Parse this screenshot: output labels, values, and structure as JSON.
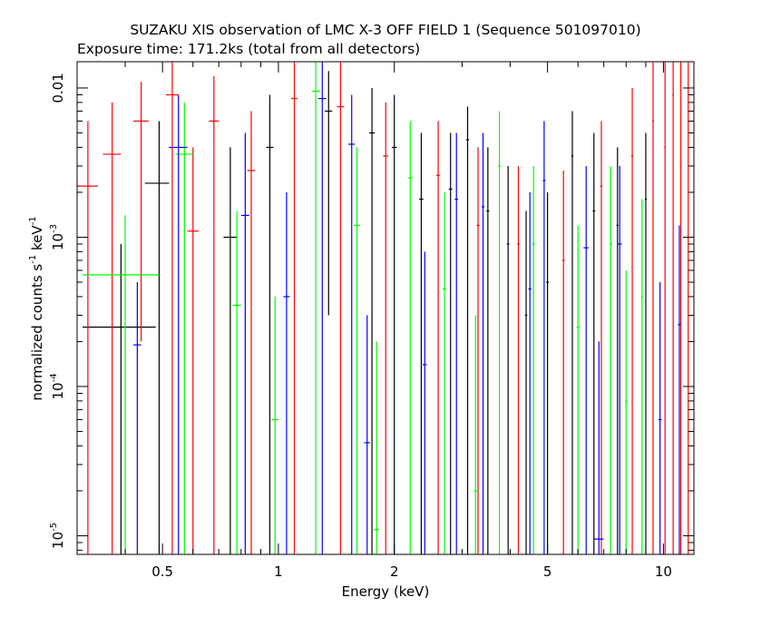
{
  "chart_data": {
    "type": "scatter",
    "title": "SUZAKU XIS observation of LMC X-3 OFF FIELD 1 (Sequence 501097010)",
    "subtitle": "Exposure time: 171.2ks (total from all detectors)",
    "xlabel": "Energy (keV)",
    "ylabel": {
      "text": "normalized counts s",
      "exp1": "-1",
      "mid": " keV",
      "exp2": "-1"
    },
    "x_scale": "log",
    "y_scale": "log",
    "xlim": [
      0.3,
      12.0
    ],
    "ylim": [
      7.5e-06,
      0.015
    ],
    "x_ticks": [
      {
        "value": 0.5,
        "label": "0.5"
      },
      {
        "value": 1,
        "label": "1"
      },
      {
        "value": 2,
        "label": "2"
      },
      {
        "value": 5,
        "label": "5"
      },
      {
        "value": 10,
        "label": "10"
      }
    ],
    "y_ticks": [
      {
        "value": 1e-05,
        "base": "10",
        "exp": "-5"
      },
      {
        "value": 0.0001,
        "base": "10",
        "exp": "-4"
      },
      {
        "value": 0.001,
        "base": "10",
        "exp": "-3"
      },
      {
        "value": 0.01,
        "base": "",
        "exp": "",
        "label": "0.01"
      }
    ],
    "series": [
      {
        "color": "#000000",
        "points": [
          {
            "x": 0.39,
            "xlo": 0.31,
            "xhi": 0.48,
            "y": 0.00025,
            "ylo": 7.5e-06,
            "yhi": 0.0009
          },
          {
            "x": 0.49,
            "xlo": 0.45,
            "xhi": 0.52,
            "y": 0.0023,
            "ylo": 7.5e-06,
            "yhi": 0.006
          },
          {
            "x": 0.75,
            "xlo": 0.72,
            "xhi": 0.78,
            "y": 0.001,
            "ylo": 7.5e-06,
            "yhi": 0.004
          },
          {
            "x": 0.95,
            "xlo": 0.93,
            "xhi": 0.97,
            "y": 0.004,
            "ylo": 7.5e-06,
            "yhi": 0.009
          },
          {
            "x": 1.35,
            "xlo": 1.32,
            "xhi": 1.38,
            "y": 0.007,
            "ylo": 0.0003,
            "yhi": 0.013
          },
          {
            "x": 1.75,
            "xlo": 1.72,
            "xhi": 1.78,
            "y": 0.005,
            "ylo": 7.5e-06,
            "yhi": 0.01
          },
          {
            "x": 2.0,
            "xlo": 1.97,
            "xhi": 2.03,
            "y": 0.004,
            "ylo": 7.5e-06,
            "yhi": 0.009
          },
          {
            "x": 2.35,
            "xlo": 2.32,
            "xhi": 2.38,
            "y": 0.0018,
            "ylo": 7.5e-06,
            "yhi": 0.005
          },
          {
            "x": 2.8,
            "xlo": 2.77,
            "xhi": 2.83,
            "y": 0.0021,
            "ylo": 7.5e-06,
            "yhi": 0.005
          },
          {
            "x": 3.1,
            "xlo": 3.07,
            "xhi": 3.13,
            "y": 0.0045,
            "ylo": 7.5e-06,
            "yhi": 0.0075
          },
          {
            "x": 3.5,
            "xlo": 3.47,
            "xhi": 3.53,
            "y": 0.0015,
            "ylo": 7.5e-06,
            "yhi": 0.004
          },
          {
            "x": 3.95,
            "xlo": 3.92,
            "xhi": 3.98,
            "y": 0.0009,
            "ylo": 7.5e-06,
            "yhi": 0.003
          },
          {
            "x": 4.4,
            "xlo": 4.37,
            "xhi": 4.43,
            "y": 0.0003,
            "ylo": 7.5e-06,
            "yhi": 0.0015
          },
          {
            "x": 5.0,
            "xlo": 4.96,
            "xhi": 5.04,
            "y": 0.0005,
            "ylo": 7.5e-06,
            "yhi": 0.002
          },
          {
            "x": 5.8,
            "xlo": 5.76,
            "xhi": 5.84,
            "y": 0.0035,
            "ylo": 7.5e-06,
            "yhi": 0.007
          },
          {
            "x": 6.6,
            "xlo": 6.55,
            "xhi": 6.65,
            "y": 0.0015,
            "ylo": 7.5e-06,
            "yhi": 0.005
          },
          {
            "x": 7.6,
            "xlo": 7.55,
            "xhi": 7.65,
            "y": 0.0012,
            "ylo": 7.5e-06,
            "yhi": 0.004
          },
          {
            "x": 9.0,
            "xlo": 8.95,
            "xhi": 9.05,
            "y": 0.0018,
            "ylo": 7.5e-06,
            "yhi": 0.005
          }
        ]
      },
      {
        "color": "#ff0000",
        "points": [
          {
            "x": 0.32,
            "xlo": 0.3,
            "xhi": 0.34,
            "y": 0.0022,
            "ylo": 7.5e-06,
            "yhi": 0.006
          },
          {
            "x": 0.37,
            "xlo": 0.35,
            "xhi": 0.39,
            "y": 0.0036,
            "ylo": 7.5e-06,
            "yhi": 0.008
          },
          {
            "x": 0.44,
            "xlo": 0.42,
            "xhi": 0.46,
            "y": 0.006,
            "ylo": 0.0002,
            "yhi": 0.011
          },
          {
            "x": 0.53,
            "xlo": 0.51,
            "xhi": 0.55,
            "y": 0.009,
            "ylo": 7.5e-06,
            "yhi": 0.015
          },
          {
            "x": 0.6,
            "xlo": 0.58,
            "xhi": 0.62,
            "y": 0.0011,
            "ylo": 7.5e-06,
            "yhi": 0.004
          },
          {
            "x": 0.68,
            "xlo": 0.66,
            "xhi": 0.7,
            "y": 0.006,
            "ylo": 7.5e-06,
            "yhi": 0.012
          },
          {
            "x": 0.85,
            "xlo": 0.83,
            "xhi": 0.87,
            "y": 0.0028,
            "ylo": 7.5e-06,
            "yhi": 0.007
          },
          {
            "x": 1.1,
            "xlo": 1.08,
            "xhi": 1.12,
            "y": 0.0085,
            "ylo": 7.5e-06,
            "yhi": 0.015
          },
          {
            "x": 1.45,
            "xlo": 1.42,
            "xhi": 1.48,
            "y": 0.0075,
            "ylo": 7.5e-06,
            "yhi": 0.015
          },
          {
            "x": 1.9,
            "xlo": 1.87,
            "xhi": 1.93,
            "y": 0.0035,
            "ylo": 7.5e-06,
            "yhi": 0.008
          },
          {
            "x": 2.6,
            "xlo": 2.57,
            "xhi": 2.63,
            "y": 0.0026,
            "ylo": 7.5e-06,
            "yhi": 0.006
          },
          {
            "x": 3.3,
            "xlo": 3.27,
            "xhi": 3.33,
            "y": 0.0012,
            "ylo": 7.5e-06,
            "yhi": 0.004
          },
          {
            "x": 4.2,
            "xlo": 4.17,
            "xhi": 4.23,
            "y": 0.0009,
            "ylo": 7.5e-06,
            "yhi": 0.003
          },
          {
            "x": 5.5,
            "xlo": 5.46,
            "xhi": 5.54,
            "y": 0.0007,
            "ylo": 7.5e-06,
            "yhi": 0.0028
          },
          {
            "x": 6.9,
            "xlo": 6.85,
            "xhi": 6.95,
            "y": 0.0022,
            "ylo": 7.5e-06,
            "yhi": 0.006
          },
          {
            "x": 8.3,
            "xlo": 8.25,
            "xhi": 8.35,
            "y": 0.0035,
            "ylo": 7.5e-06,
            "yhi": 0.01
          },
          {
            "x": 9.4,
            "xlo": 9.35,
            "xhi": 9.45,
            "y": 0.006,
            "ylo": 7.5e-06,
            "yhi": 0.015
          },
          {
            "x": 10.1,
            "xlo": 10.05,
            "xhi": 10.15,
            "y": 0.004,
            "ylo": 7.5e-06,
            "yhi": 0.015
          },
          {
            "x": 10.6,
            "xlo": 10.55,
            "xhi": 10.65,
            "y": 0.009,
            "ylo": 7.5e-06,
            "yhi": 0.015
          },
          {
            "x": 11.1,
            "xlo": 11.05,
            "xhi": 11.15,
            "y": 0.003,
            "ylo": 7.5e-06,
            "yhi": 0.015
          },
          {
            "x": 11.6,
            "xlo": 11.55,
            "xhi": 11.65,
            "y": 0.007,
            "ylo": 7.5e-06,
            "yhi": 0.015
          }
        ]
      },
      {
        "color": "#00ff00",
        "points": [
          {
            "x": 0.4,
            "xlo": 0.31,
            "xhi": 0.49,
            "y": 0.00056,
            "ylo": 7.5e-06,
            "yhi": 0.0014
          },
          {
            "x": 0.57,
            "xlo": 0.54,
            "xhi": 0.6,
            "y": 0.0036,
            "ylo": 7.5e-06,
            "yhi": 0.008
          },
          {
            "x": 0.78,
            "xlo": 0.76,
            "xhi": 0.8,
            "y": 0.00035,
            "ylo": 7.5e-06,
            "yhi": 0.0015
          },
          {
            "x": 0.98,
            "xlo": 0.96,
            "xhi": 1.0,
            "y": 6e-05,
            "ylo": 7.5e-06,
            "yhi": 0.0004
          },
          {
            "x": 1.25,
            "xlo": 1.22,
            "xhi": 1.28,
            "y": 0.0095,
            "ylo": 7.5e-06,
            "yhi": 0.015
          },
          {
            "x": 1.6,
            "xlo": 1.57,
            "xhi": 1.63,
            "y": 0.0012,
            "ylo": 7.5e-06,
            "yhi": 0.004
          },
          {
            "x": 1.8,
            "xlo": 1.77,
            "xhi": 1.83,
            "y": 1.1e-05,
            "ylo": 7.5e-06,
            "yhi": 0.0002
          },
          {
            "x": 2.2,
            "xlo": 2.17,
            "xhi": 2.23,
            "y": 0.0025,
            "ylo": 7.5e-06,
            "yhi": 0.006
          },
          {
            "x": 2.7,
            "xlo": 2.67,
            "xhi": 2.73,
            "y": 0.00045,
            "ylo": 7.5e-06,
            "yhi": 0.002
          },
          {
            "x": 3.25,
            "xlo": 3.22,
            "xhi": 3.28,
            "y": 2e-05,
            "ylo": 7.5e-06,
            "yhi": 0.0003
          },
          {
            "x": 3.75,
            "xlo": 3.72,
            "xhi": 3.78,
            "y": 0.003,
            "ylo": 7.5e-06,
            "yhi": 0.007
          },
          {
            "x": 4.6,
            "xlo": 4.56,
            "xhi": 4.64,
            "y": 0.0009,
            "ylo": 7.5e-06,
            "yhi": 0.003
          },
          {
            "x": 6.0,
            "xlo": 5.95,
            "xhi": 6.05,
            "y": 0.00025,
            "ylo": 7.5e-06,
            "yhi": 0.0012
          },
          {
            "x": 7.3,
            "xlo": 7.25,
            "xhi": 7.35,
            "y": 0.0009,
            "ylo": 7.5e-06,
            "yhi": 0.003
          },
          {
            "x": 8.0,
            "xlo": 7.95,
            "xhi": 8.05,
            "y": 8e-05,
            "ylo": 7.5e-06,
            "yhi": 0.0006
          },
          {
            "x": 8.8,
            "xlo": 8.75,
            "xhi": 8.85,
            "y": 0.0004,
            "ylo": 7.5e-06,
            "yhi": 0.0018
          }
        ]
      },
      {
        "color": "#0000ff",
        "points": [
          {
            "x": 0.43,
            "xlo": 0.42,
            "xhi": 0.44,
            "y": 0.00019,
            "ylo": 7.5e-06,
            "yhi": 0.0005
          },
          {
            "x": 0.55,
            "xlo": 0.52,
            "xhi": 0.58,
            "y": 0.004,
            "ylo": 7.5e-06,
            "yhi": 0.009
          },
          {
            "x": 0.82,
            "xlo": 0.8,
            "xhi": 0.84,
            "y": 0.0014,
            "ylo": 7.5e-06,
            "yhi": 0.005
          },
          {
            "x": 1.05,
            "xlo": 1.03,
            "xhi": 1.07,
            "y": 0.0004,
            "ylo": 7.5e-06,
            "yhi": 0.002
          },
          {
            "x": 1.3,
            "xlo": 1.27,
            "xhi": 1.33,
            "y": 0.0085,
            "ylo": 7.5e-06,
            "yhi": 0.015
          },
          {
            "x": 1.55,
            "xlo": 1.52,
            "xhi": 1.58,
            "y": 0.0042,
            "ylo": 7.5e-06,
            "yhi": 0.009
          },
          {
            "x": 1.7,
            "xlo": 1.67,
            "xhi": 1.73,
            "y": 4.2e-05,
            "ylo": 7.5e-06,
            "yhi": 0.0003
          },
          {
            "x": 2.4,
            "xlo": 2.37,
            "xhi": 2.43,
            "y": 0.00014,
            "ylo": 7.5e-06,
            "yhi": 0.0008
          },
          {
            "x": 2.9,
            "xlo": 2.87,
            "xhi": 2.93,
            "y": 0.0018,
            "ylo": 7.5e-06,
            "yhi": 0.005
          },
          {
            "x": 3.4,
            "xlo": 3.37,
            "xhi": 3.43,
            "y": 0.0016,
            "ylo": 7.5e-06,
            "yhi": 0.005
          },
          {
            "x": 4.5,
            "xlo": 4.46,
            "xhi": 4.54,
            "y": 0.00045,
            "ylo": 7.5e-06,
            "yhi": 0.002
          },
          {
            "x": 4.9,
            "xlo": 4.86,
            "xhi": 4.94,
            "y": 0.0024,
            "ylo": 7.5e-06,
            "yhi": 0.006
          },
          {
            "x": 6.3,
            "xlo": 6.2,
            "xhi": 6.4,
            "y": 0.00085,
            "ylo": 7.5e-06,
            "yhi": 0.003
          },
          {
            "x": 6.8,
            "xlo": 6.6,
            "xhi": 7.0,
            "y": 9.5e-06,
            "ylo": 7.5e-06,
            "yhi": 0.0002
          },
          {
            "x": 7.7,
            "xlo": 7.6,
            "xhi": 7.8,
            "y": 0.0009,
            "ylo": 7.5e-06,
            "yhi": 0.003
          },
          {
            "x": 9.8,
            "xlo": 9.7,
            "xhi": 9.9,
            "y": 6e-05,
            "ylo": 7.5e-06,
            "yhi": 0.0005
          },
          {
            "x": 11.0,
            "xlo": 10.9,
            "xhi": 11.1,
            "y": 0.00026,
            "ylo": 7.5e-06,
            "yhi": 0.0012
          }
        ]
      }
    ]
  }
}
